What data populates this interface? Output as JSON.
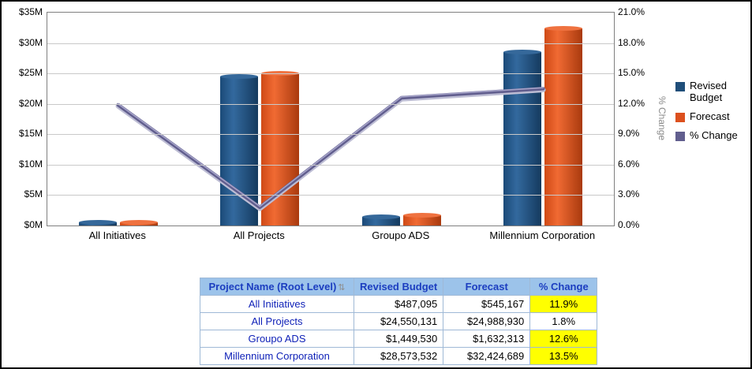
{
  "chart_data": {
    "type": "combo",
    "categories": [
      "All Initiatives",
      "All Projects",
      "Groupo ADS",
      "Millennium Corporation"
    ],
    "series": [
      {
        "name": "Revised Budget",
        "type": "bar",
        "axis": "left",
        "values": [
          487095,
          24550131,
          1449530,
          28573532
        ],
        "color": "#1F4E79"
      },
      {
        "name": "Forecast",
        "type": "bar",
        "axis": "left",
        "values": [
          545167,
          24988930,
          1632313,
          32424689
        ],
        "color": "#DC501E"
      },
      {
        "name": "% Change",
        "type": "line",
        "axis": "right",
        "values": [
          11.9,
          1.8,
          12.6,
          13.5
        ],
        "color": "#615E8E"
      }
    ],
    "left_axis": {
      "min": 0,
      "max": 35000000,
      "ticks": [
        "$0M",
        "$5M",
        "$10M",
        "$15M",
        "$20M",
        "$25M",
        "$30M",
        "$35M"
      ]
    },
    "right_axis": {
      "label": "% Change",
      "min": 0,
      "max": 21,
      "ticks": [
        "0.0%",
        "3.0%",
        "6.0%",
        "9.0%",
        "12.0%",
        "15.0%",
        "18.0%",
        "21.0%"
      ]
    },
    "legend": [
      "Revised Budget",
      "Forecast",
      "% Change"
    ],
    "grid": "horizontal"
  },
  "table": {
    "headers": [
      "Project Name (Root Level)",
      "Revised Budget",
      "Forecast",
      "% Change"
    ],
    "sort_icon": "⇅",
    "rows": [
      {
        "name": "All Initiatives",
        "revised_budget": "$487,095",
        "forecast": "$545,167",
        "pct_change": "11.9%",
        "highlight": true
      },
      {
        "name": "All Projects",
        "revised_budget": "$24,550,131",
        "forecast": "$24,988,930",
        "pct_change": "1.8%",
        "highlight": false
      },
      {
        "name": "Groupo ADS",
        "revised_budget": "$1,449,530",
        "forecast": "$1,632,313",
        "pct_change": "12.6%",
        "highlight": true
      },
      {
        "name": "Millennium Corporation",
        "revised_budget": "$28,573,532",
        "forecast": "$32,424,689",
        "pct_change": "13.5%",
        "highlight": true
      }
    ],
    "highlight_color": "#FFFF00",
    "header_bg": "#9CC3EA"
  }
}
